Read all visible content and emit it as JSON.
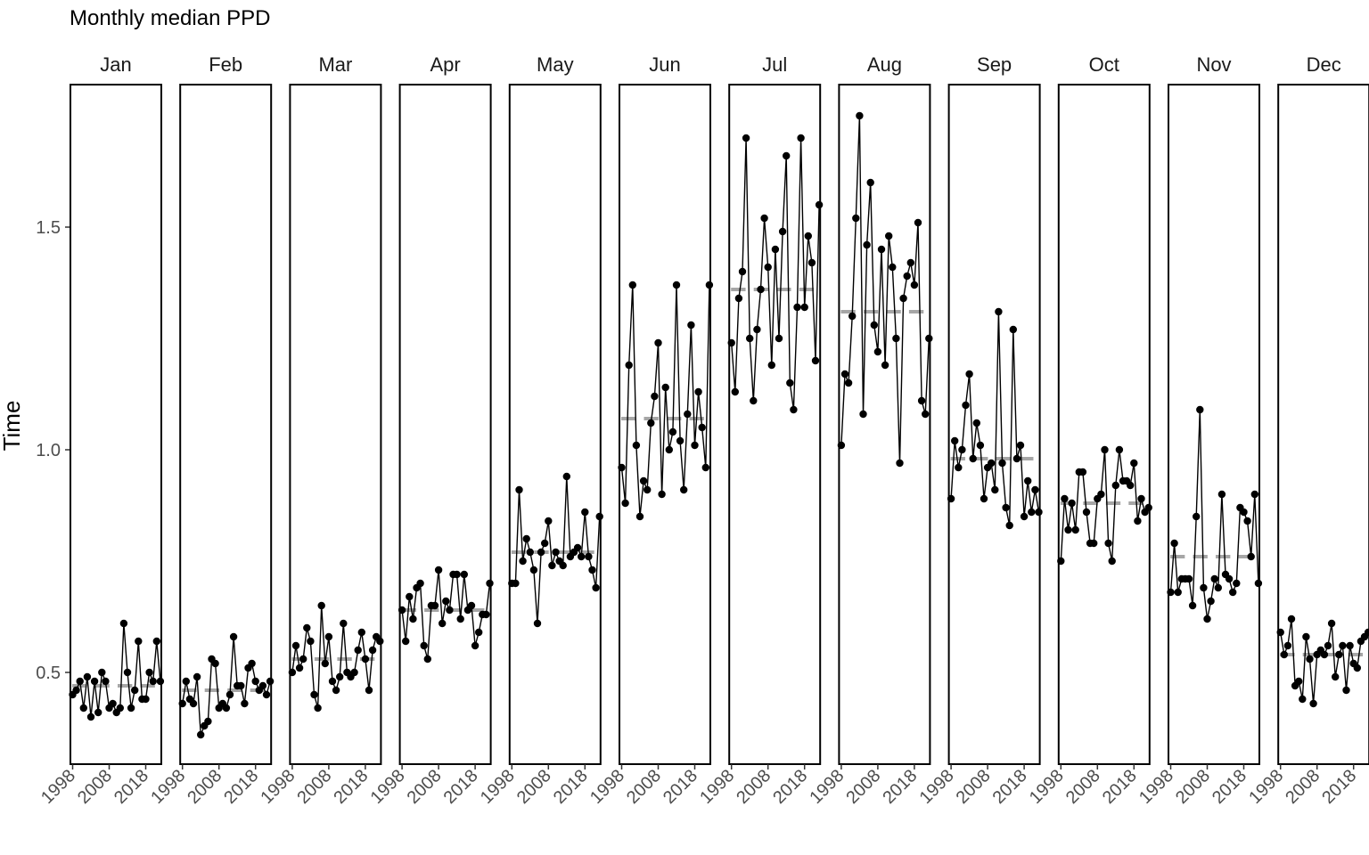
{
  "chart_data": {
    "type": "line",
    "title": "Monthly median PPD",
    "ylabel": "Time",
    "xlabel": "",
    "ylim": [
      0.3,
      1.82
    ],
    "xlim": [
      1998,
      2022
    ],
    "yticks": [
      0.5,
      1.0,
      1.5
    ],
    "ytick_labels": [
      "0.5",
      "1.0",
      "1.5"
    ],
    "xticks": [
      1998,
      2008,
      2018
    ],
    "xtick_labels": [
      "1998",
      "2008",
      "2018"
    ],
    "grid": false,
    "legend": "none",
    "x": [
      1998,
      1999,
      2000,
      2001,
      2002,
      2003,
      2004,
      2005,
      2006,
      2007,
      2008,
      2009,
      2010,
      2011,
      2012,
      2013,
      2014,
      2015,
      2016,
      2017,
      2018,
      2019,
      2020,
      2021,
      2022
    ],
    "medians": {
      "Jan": [
        0.47,
        0.47,
        0.47,
        0.47
      ],
      "Feb": [
        0.46,
        0.46,
        0.46,
        0.46
      ],
      "Mar": [
        0.53,
        0.53,
        0.53,
        0.53
      ],
      "Apr": [
        0.64,
        0.64,
        0.64,
        0.64
      ],
      "May": [
        0.77,
        0.77,
        0.77,
        0.77
      ],
      "Jun": [
        1.07,
        1.07,
        1.07,
        1.07
      ],
      "Jul": [
        1.36,
        1.36,
        1.36,
        1.36
      ],
      "Aug": [
        1.31,
        1.31,
        1.31,
        1.31
      ],
      "Sep": [
        0.98,
        0.98,
        0.98,
        0.98
      ],
      "Oct": [
        0.88,
        0.88,
        0.88,
        0.88
      ],
      "Nov": [
        0.76,
        0.76,
        0.76,
        0.76
      ],
      "Dec": [
        0.54,
        0.54,
        0.54,
        0.54
      ]
    },
    "panels": [
      {
        "name": "Jan",
        "values": [
          0.45,
          0.46,
          0.48,
          0.42,
          0.49,
          0.4,
          0.48,
          0.41,
          0.5,
          0.48,
          0.42,
          0.43,
          0.41,
          0.42,
          0.61,
          0.5,
          0.42,
          0.46,
          0.57,
          0.44,
          0.44,
          0.5,
          0.48,
          0.57,
          0.48
        ]
      },
      {
        "name": "Feb",
        "values": [
          0.43,
          0.48,
          0.44,
          0.43,
          0.49,
          0.36,
          0.38,
          0.39,
          0.53,
          0.52,
          0.42,
          0.43,
          0.42,
          0.45,
          0.58,
          0.47,
          0.47,
          0.43,
          0.51,
          0.52,
          0.48,
          0.46,
          0.47,
          0.45,
          0.48
        ]
      },
      {
        "name": "Mar",
        "values": [
          0.5,
          0.56,
          0.51,
          0.53,
          0.6,
          0.57,
          0.45,
          0.42,
          0.65,
          0.52,
          0.58,
          0.48,
          0.46,
          0.49,
          0.61,
          0.5,
          0.49,
          0.5,
          0.55,
          0.59,
          0.53,
          0.46,
          0.55,
          0.58,
          0.57
        ]
      },
      {
        "name": "Apr",
        "values": [
          0.64,
          0.57,
          0.67,
          0.62,
          0.69,
          0.7,
          0.56,
          0.53,
          0.65,
          0.65,
          0.73,
          0.61,
          0.66,
          0.64,
          0.72,
          0.72,
          0.62,
          0.72,
          0.64,
          0.65,
          0.56,
          0.59,
          0.63,
          0.63,
          0.7
        ]
      },
      {
        "name": "May",
        "values": [
          0.7,
          0.7,
          0.91,
          0.75,
          0.8,
          0.77,
          0.73,
          0.61,
          0.77,
          0.79,
          0.84,
          0.74,
          0.77,
          0.75,
          0.74,
          0.94,
          0.76,
          0.77,
          0.78,
          0.76,
          0.86,
          0.76,
          0.73,
          0.69,
          0.85
        ]
      },
      {
        "name": "Jun",
        "values": [
          0.96,
          0.88,
          1.19,
          1.37,
          1.01,
          0.85,
          0.93,
          0.91,
          1.06,
          1.12,
          1.24,
          0.9,
          1.14,
          1.0,
          1.04,
          1.37,
          1.02,
          0.91,
          1.08,
          1.28,
          1.01,
          1.13,
          1.05,
          0.96,
          1.37
        ]
      },
      {
        "name": "Jul",
        "values": [
          1.24,
          1.13,
          1.34,
          1.4,
          1.7,
          1.25,
          1.11,
          1.27,
          1.36,
          1.52,
          1.41,
          1.19,
          1.45,
          1.25,
          1.49,
          1.66,
          1.15,
          1.09,
          1.32,
          1.7,
          1.32,
          1.48,
          1.42,
          1.2,
          1.55
        ]
      },
      {
        "name": "Aug",
        "values": [
          1.01,
          1.17,
          1.15,
          1.3,
          1.52,
          1.75,
          1.08,
          1.46,
          1.6,
          1.28,
          1.22,
          1.45,
          1.19,
          1.48,
          1.41,
          1.25,
          0.97,
          1.34,
          1.39,
          1.42,
          1.37,
          1.51,
          1.11,
          1.08,
          1.25
        ]
      },
      {
        "name": "Sep",
        "values": [
          0.89,
          1.02,
          0.96,
          1.0,
          1.1,
          1.17,
          0.98,
          1.06,
          1.01,
          0.89,
          0.96,
          0.97,
          0.91,
          1.31,
          0.97,
          0.87,
          0.83,
          1.27,
          0.98,
          1.01,
          0.85,
          0.93,
          0.86,
          0.91,
          0.86
        ]
      },
      {
        "name": "Oct",
        "values": [
          0.75,
          0.89,
          0.82,
          0.88,
          0.82,
          0.95,
          0.95,
          0.86,
          0.79,
          0.79,
          0.89,
          0.9,
          1.0,
          0.79,
          0.75,
          0.92,
          1.0,
          0.93,
          0.93,
          0.92,
          0.97,
          0.84,
          0.89,
          0.86,
          0.87
        ]
      },
      {
        "name": "Nov",
        "values": [
          0.68,
          0.79,
          0.68,
          0.71,
          0.71,
          0.71,
          0.65,
          0.85,
          1.09,
          0.69,
          0.62,
          0.66,
          0.71,
          0.69,
          0.9,
          0.72,
          0.71,
          0.68,
          0.7,
          0.87,
          0.86,
          0.84,
          0.76,
          0.9,
          0.7
        ]
      },
      {
        "name": "Dec",
        "values": [
          0.59,
          0.54,
          0.56,
          0.62,
          0.47,
          0.48,
          0.44,
          0.58,
          0.53,
          0.43,
          0.54,
          0.55,
          0.54,
          0.56,
          0.61,
          0.49,
          0.54,
          0.56,
          0.46,
          0.56,
          0.52,
          0.51,
          0.57,
          0.58,
          0.59
        ]
      }
    ]
  }
}
